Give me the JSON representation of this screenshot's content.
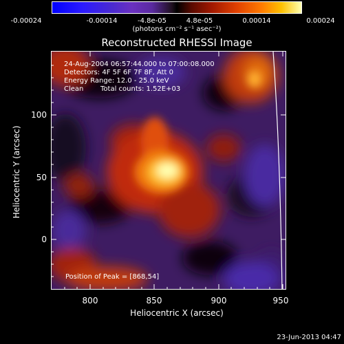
{
  "colorbar": {
    "ticks": [
      "-0.00024",
      "-0.00014",
      "-4.8e-05",
      "4.8e-05",
      "0.00014",
      "0.00024"
    ],
    "units": "(photons cm⁻² s⁻¹ asec⁻²)"
  },
  "plot": {
    "title": "Reconstructed RHESSI Image",
    "xlabel": "Heliocentric X (arcsec)",
    "ylabel": "Heliocentric Y (arcsec)",
    "xticks": [
      "800",
      "850",
      "900",
      "950"
    ],
    "yticks": [
      "100",
      "50",
      "0"
    ],
    "xrange": [
      768,
      960
    ],
    "yrange": [
      -45,
      143
    ],
    "annotations": {
      "time": "24-Aug-2004 06:57:44.000 to 07:00:08.000",
      "detectors": "Detectors: 4F 5F 6F 7F 8F, Att 0",
      "energy": "Energy Range: 12.0 - 25.0 keV",
      "method": "Clean",
      "counts": "Total counts: 1.52E+03",
      "peak": "Position of Peak = [868,54]"
    }
  },
  "footer": {
    "date": "23-Jun-2013 04:47"
  }
}
